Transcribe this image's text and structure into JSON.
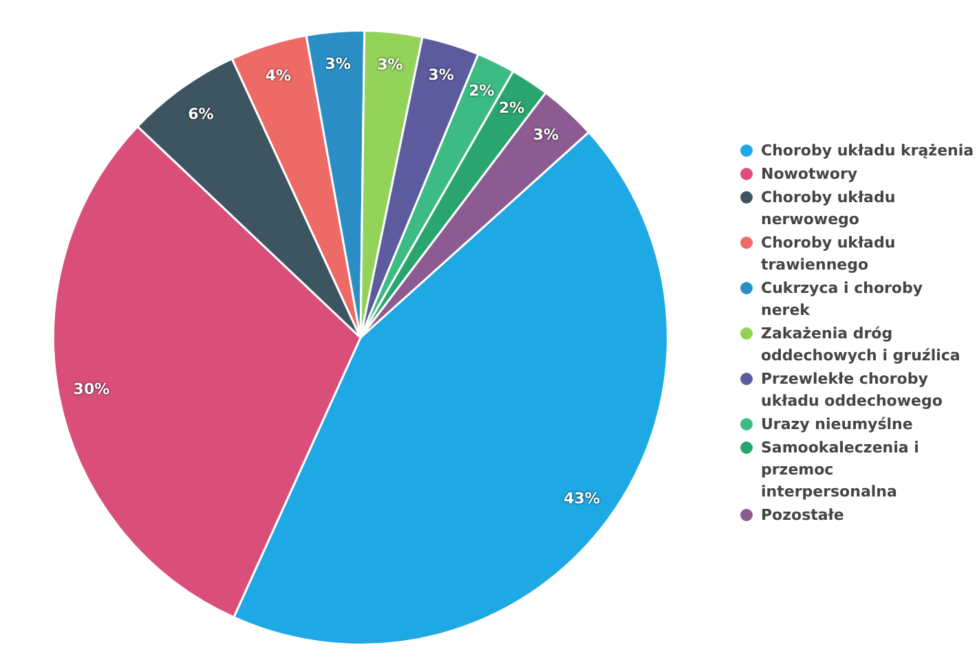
{
  "chart_data": {
    "type": "pie",
    "categories": [
      "Choroby układu krążenia",
      "Nowotwory",
      "Choroby układu nerwowego",
      "Choroby układu trawiennego",
      "Cukrzyca i choroby nerek",
      "Zakażenia dróg oddechowych i gruźlica",
      "Przewlekłe choroby układu oddechowego",
      "Urazy nieumyślne",
      "Samookaleczenia i przemoc interpersonalna",
      "Pozostałe"
    ],
    "values": [
      43,
      30,
      6,
      4,
      3,
      3,
      3,
      2,
      2,
      3
    ],
    "value_labels": [
      "43%",
      "30%",
      "6%",
      "4%",
      "3%",
      "3%",
      "3%",
      "2%",
      "2%",
      "3%"
    ],
    "colors": [
      "#1ea8e4",
      "#d94f7a",
      "#3d5561",
      "#ee6a66",
      "#2b8fc6",
      "#93d35a",
      "#5b5b9e",
      "#3cbb85",
      "#2aa56f",
      "#8c5b91"
    ],
    "legend": "right"
  }
}
